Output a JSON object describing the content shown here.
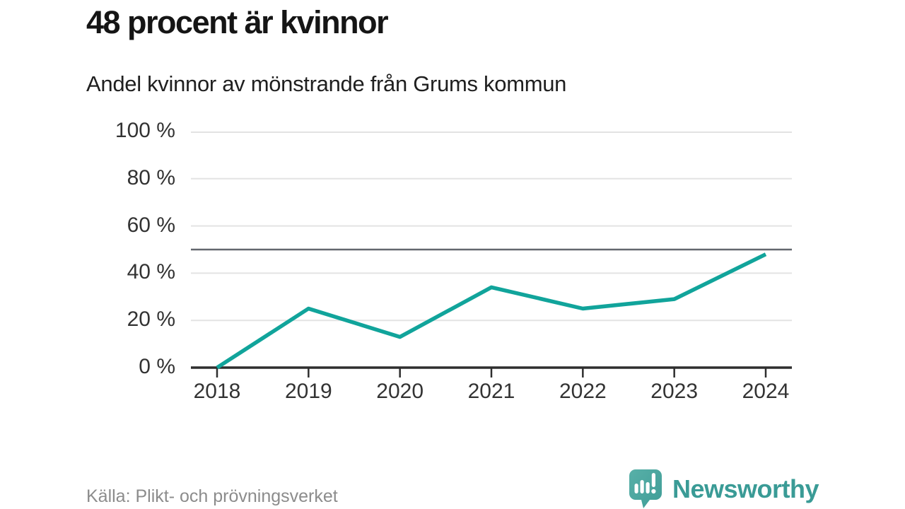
{
  "chart_data": {
    "type": "line",
    "title": "48 procent är kvinnor",
    "subtitle": "Andel kvinnor av mönstrande från Grums kommun",
    "categories": [
      "2018",
      "2019",
      "2020",
      "2021",
      "2022",
      "2023",
      "2024"
    ],
    "values": [
      0,
      25,
      13,
      34,
      25,
      29,
      48
    ],
    "unit": "%",
    "ylim": [
      0,
      100
    ],
    "yticks": [
      0,
      20,
      40,
      60,
      80,
      100
    ],
    "ytick_labels": [
      "0 %",
      "20 %",
      "40 %",
      "60 %",
      "80 %",
      "100 %"
    ],
    "reference_line": 50,
    "grid": true,
    "legend": "none",
    "colors": {
      "line": "#11a49b",
      "grid": "#e3e3e3",
      "axis": "#2e2e2e",
      "reference": "#63676e"
    }
  },
  "footer": {
    "source": "Källa: Plikt- och prövningsverket",
    "brand": "Newsworthy",
    "brand_color": "#3a9b96",
    "logo_bubble_color": "#4aa6a0"
  }
}
